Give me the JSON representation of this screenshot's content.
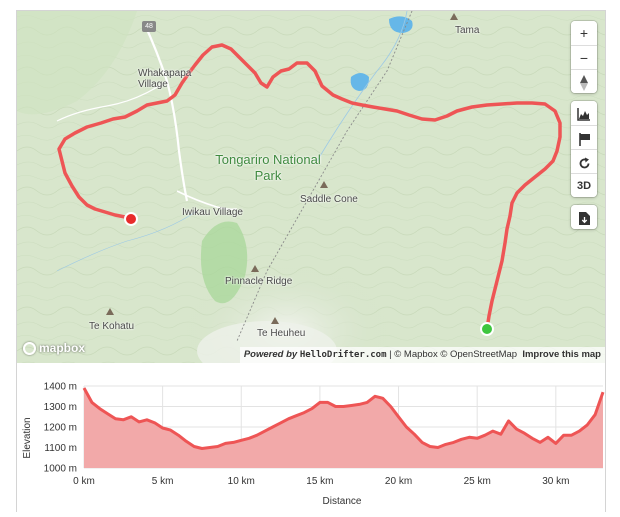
{
  "map": {
    "labels": {
      "whakapapa_village": "Whakapapa Village",
      "tongariro_park": "Tongariro National Park",
      "iwikau_village": "Iwikau Village",
      "saddle_cone": "Saddle Cone",
      "pinnacle_ridge": "Pinnacle Ridge",
      "te_kohatu": "Te Kohatu",
      "te_heuheu": "Te Heuheu",
      "tama": "Tama",
      "road_shield": "48"
    },
    "colors": {
      "route": "#ee5555",
      "start_marker": "#3ec63e",
      "end_marker": "#e82b2b",
      "park_text": "#3f8a3f",
      "terrain": "#d8e6cc",
      "water": "#66b7e8"
    }
  },
  "controls": {
    "zoom_in": "+",
    "zoom_out": "−",
    "compass": "▲",
    "elevation_chart_icon": "bar-chart-icon",
    "flag_icon": "flag-icon",
    "refresh_icon": "refresh-icon",
    "threed_label": "3D",
    "download_icon": "download-icon"
  },
  "branding": {
    "mapbox_logo": "mapbox"
  },
  "attribution": {
    "powered_by": "Powered by",
    "brand": "HelloDrifter.com",
    "separator1": " | © Mapbox © OpenStreetMap",
    "improve": "Improve this map"
  },
  "chart_data": {
    "type": "area",
    "title": "",
    "xlabel": "Distance",
    "ylabel": "Elevation",
    "x_unit": "km",
    "y_unit": "m",
    "xlim": [
      0,
      33
    ],
    "ylim": [
      1000,
      1400
    ],
    "x_ticks": [
      "0 km",
      "5 km",
      "10 km",
      "15 km",
      "20 km",
      "25 km",
      "30 km"
    ],
    "y_ticks": [
      "1000 m",
      "1100 m",
      "1200 m",
      "1300 m",
      "1400 m"
    ],
    "series": [
      {
        "x": [
          0,
          0.5,
          1,
          1.5,
          2,
          2.5,
          3,
          3.5,
          4,
          4.5,
          5,
          5.5,
          6,
          6.5,
          7,
          7.5,
          8,
          8.5,
          9,
          9.5,
          10,
          10.5,
          11,
          11.5,
          12,
          12.5,
          13,
          13.5,
          14,
          14.5,
          15,
          15.5,
          16,
          16.5,
          17,
          17.5,
          18,
          18.5,
          19,
          19.5,
          20,
          20.5,
          21,
          21.5,
          22,
          22.5,
          23,
          23.5,
          24,
          24.5,
          25,
          25.5,
          26,
          26.5,
          27,
          27.5,
          28,
          28.5,
          29,
          29.5,
          30,
          30.5,
          31,
          31.5,
          32,
          32.5,
          33
        ],
        "y": [
          1390,
          1320,
          1290,
          1265,
          1240,
          1235,
          1250,
          1225,
          1235,
          1220,
          1195,
          1185,
          1160,
          1130,
          1105,
          1095,
          1100,
          1105,
          1120,
          1125,
          1135,
          1145,
          1160,
          1180,
          1200,
          1220,
          1240,
          1255,
          1270,
          1290,
          1320,
          1320,
          1300,
          1300,
          1305,
          1310,
          1320,
          1350,
          1340,
          1300,
          1250,
          1200,
          1165,
          1125,
          1105,
          1100,
          1115,
          1125,
          1140,
          1150,
          1145,
          1160,
          1180,
          1165,
          1230,
          1190,
          1170,
          1145,
          1125,
          1150,
          1120,
          1160,
          1160,
          1180,
          1210,
          1260,
          1370
        ]
      }
    ],
    "colors": {
      "line": "#ee5555",
      "fill": "#f2a9a9",
      "grid": "#e3e3e3"
    },
    "grid": true
  }
}
